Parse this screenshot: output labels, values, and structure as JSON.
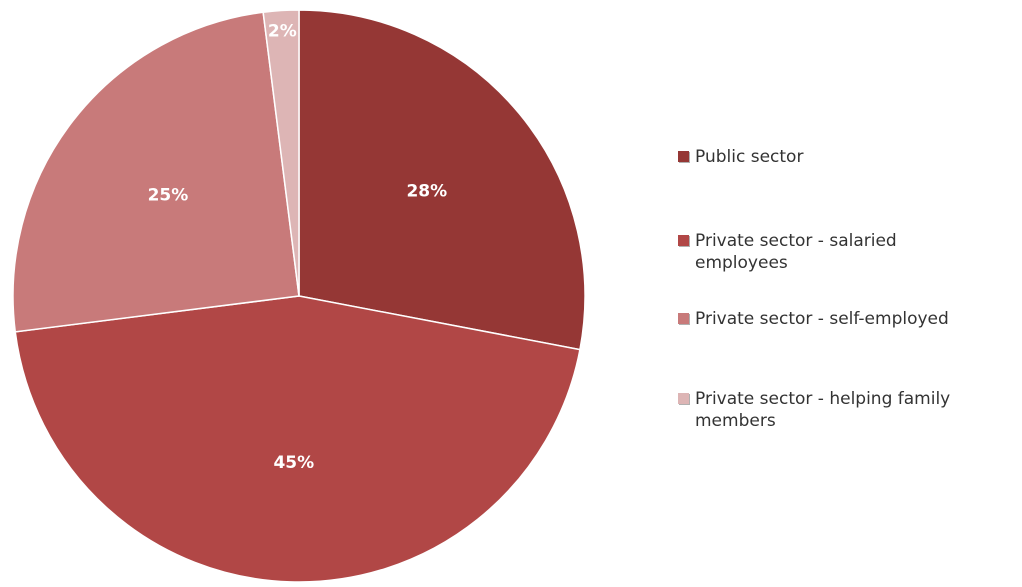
{
  "chart_data": {
    "type": "pie",
    "title": "",
    "start_angle_deg": 0,
    "direction": "clockwise",
    "legend_position": "right",
    "slices": [
      {
        "label": "Public sector",
        "value": 28,
        "value_label": "28%",
        "color": "#953735"
      },
      {
        "label": "Private sector - salaried employees",
        "value": 45,
        "value_label": "45%",
        "color": "#b14746"
      },
      {
        "label": "Private sector - self-employed",
        "value": 25,
        "value_label": "25%",
        "color": "#c87a7a"
      },
      {
        "label": "Private sector - helping family members",
        "value": 2,
        "value_label": "2%",
        "color": "#ddb5b5"
      }
    ]
  }
}
